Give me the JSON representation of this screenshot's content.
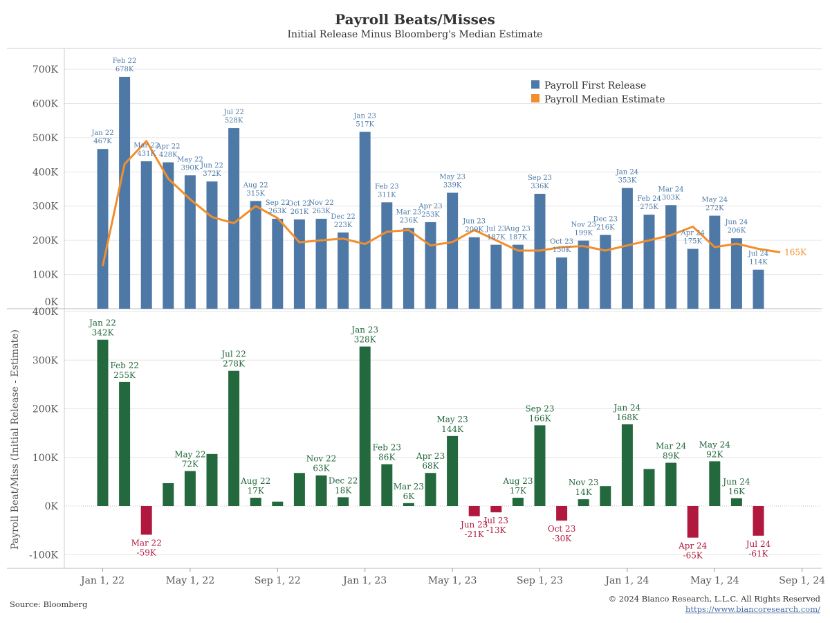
{
  "header": {
    "title": "Payroll Beats/Misses",
    "subtitle": "Initial Release Minus Bloomberg's Median Estimate"
  },
  "footer": {
    "source": "Source: Bloomberg",
    "copyright": "© 2024 Bianco Research, L.L.C. All Rights Reserved",
    "url": "https://www.biancoresearch.com/"
  },
  "colors": {
    "release_bar": "#4e79a7",
    "median_line": "#f28e2b",
    "beat_bar": "#24693d",
    "miss_bar": "#b0193d",
    "grid": "#e6e6e6",
    "axis_text": "#555555"
  },
  "chart_data": [
    {
      "type": "bar",
      "series": [
        {
          "name": "Payroll First Release",
          "x": [
            "2022-01",
            "2022-02",
            "2022-03",
            "2022-04",
            "2022-05",
            "2022-06",
            "2022-07",
            "2022-08",
            "2022-09",
            "2022-10",
            "2022-11",
            "2022-12",
            "2023-01",
            "2023-02",
            "2023-03",
            "2023-04",
            "2023-05",
            "2023-06",
            "2023-07",
            "2023-08",
            "2023-09",
            "2023-10",
            "2023-11",
            "2023-12",
            "2024-01",
            "2024-02",
            "2024-03",
            "2024-04",
            "2024-05",
            "2024-06",
            "2024-07"
          ],
          "values": [
            467,
            678,
            431,
            428,
            390,
            372,
            528,
            315,
            263,
            261,
            263,
            223,
            517,
            311,
            236,
            253,
            339,
            209,
            187,
            187,
            336,
            150,
            199,
            216,
            353,
            275,
            303,
            175,
            272,
            206,
            114
          ],
          "labels": [
            "Jan 22",
            "Feb 22",
            "Mar 22",
            "Apr 22",
            "May 22",
            "Jun 22",
            "Jul 22",
            "Aug 22",
            "Sep 22",
            "Oct 22",
            "Nov 22",
            "Dec 22",
            "Jan 23",
            "Feb 23",
            "Mar 23",
            "Apr 23",
            "May 23",
            "Jun 23",
            "Jul 23",
            "Aug 23",
            "Sep 23",
            "Oct 23",
            "Nov 23",
            "Dec 23",
            "Jan 24",
            "Feb 24",
            "Mar 24",
            "Apr 24",
            "May 24",
            "Jun 24",
            "Jul 24"
          ],
          "value_labels": [
            "467K",
            "678K",
            "431K",
            "428K",
            "390K",
            "372K",
            "528K",
            "315K",
            "263K",
            "261K",
            "263K",
            "223K",
            "517K",
            "311K",
            "236K",
            "253K",
            "339K",
            "209K",
            "187K",
            "187K",
            "336K",
            "150K",
            "199K",
            "216K",
            "353K",
            "275K",
            "303K",
            "175K",
            "272K",
            "206K",
            "114K"
          ]
        },
        {
          "name": "Payroll Median Estimate",
          "type": "line",
          "x": [
            "2022-01",
            "2022-02",
            "2022-03",
            "2022-04",
            "2022-05",
            "2022-06",
            "2022-07",
            "2022-08",
            "2022-09",
            "2022-10",
            "2022-11",
            "2022-12",
            "2023-01",
            "2023-02",
            "2023-03",
            "2023-04",
            "2023-05",
            "2023-06",
            "2023-07",
            "2023-08",
            "2023-09",
            "2023-10",
            "2023-11",
            "2023-12",
            "2024-01",
            "2024-02",
            "2024-03",
            "2024-04",
            "2024-05",
            "2024-06",
            "2024-07",
            "2024-08"
          ],
          "values": [
            125,
            423,
            490,
            380,
            320,
            268,
            250,
            300,
            265,
            194,
            200,
            205,
            189,
            225,
            230,
            185,
            195,
            230,
            200,
            170,
            170,
            180,
            183,
            170,
            185,
            200,
            215,
            240,
            180,
            190,
            175,
            165
          ],
          "end_label": "165K"
        }
      ],
      "y_ticks": [
        "0K",
        "100K",
        "200K",
        "300K",
        "400K",
        "500K",
        "600K",
        "700K"
      ],
      "ylim": [
        0,
        760
      ],
      "legend": "top-right",
      "grid": true
    },
    {
      "type": "bar",
      "ylabel": "Payroll Beat/Miss (Initial Release - Estimate)",
      "x": [
        "2022-01",
        "2022-02",
        "2022-03",
        "2022-04",
        "2022-05",
        "2022-06",
        "2022-07",
        "2022-08",
        "2022-09",
        "2022-10",
        "2022-11",
        "2022-12",
        "2023-01",
        "2023-02",
        "2023-03",
        "2023-04",
        "2023-05",
        "2023-06",
        "2023-07",
        "2023-08",
        "2023-09",
        "2023-10",
        "2023-11",
        "2023-12",
        "2024-01",
        "2024-02",
        "2024-03",
        "2024-04",
        "2024-05",
        "2024-06",
        "2024-07"
      ],
      "values": [
        342,
        255,
        -59,
        47,
        72,
        107,
        278,
        17,
        9,
        68,
        63,
        18,
        328,
        86,
        6,
        68,
        144,
        -21,
        -13,
        17,
        166,
        -30,
        14,
        41,
        168,
        76,
        89,
        -65,
        92,
        16,
        -61
      ],
      "labels": [
        {
          "i": 0,
          "month": "Jan 22",
          "value": "342K"
        },
        {
          "i": 1,
          "month": "Feb 22",
          "value": "255K"
        },
        {
          "i": 2,
          "month": "Mar 22",
          "value": "-59K"
        },
        {
          "i": 4,
          "month": "May 22",
          "value": "72K"
        },
        {
          "i": 6,
          "month": "Jul 22",
          "value": "278K"
        },
        {
          "i": 7,
          "month": "Aug 22",
          "value": "17K"
        },
        {
          "i": 10,
          "month": "Nov 22",
          "value": "63K"
        },
        {
          "i": 11,
          "month": "Dec 22",
          "value": "18K"
        },
        {
          "i": 12,
          "month": "Jan 23",
          "value": "328K"
        },
        {
          "i": 13,
          "month": "Feb 23",
          "value": "86K"
        },
        {
          "i": 14,
          "month": "Mar 23",
          "value": "6K"
        },
        {
          "i": 15,
          "month": "Apr 23",
          "value": "68K"
        },
        {
          "i": 16,
          "month": "May 23",
          "value": "144K"
        },
        {
          "i": 17,
          "month": "Jun 23",
          "value": "-21K"
        },
        {
          "i": 18,
          "month": "Jul 23",
          "value": "-13K"
        },
        {
          "i": 19,
          "month": "Aug 23",
          "value": "17K"
        },
        {
          "i": 20,
          "month": "Sep 23",
          "value": "166K"
        },
        {
          "i": 21,
          "month": "Oct 23",
          "value": "-30K"
        },
        {
          "i": 22,
          "month": "Nov 23",
          "value": "14K"
        },
        {
          "i": 24,
          "month": "Jan 24",
          "value": "168K"
        },
        {
          "i": 26,
          "month": "Mar 24",
          "value": "89K"
        },
        {
          "i": 27,
          "month": "Apr 24",
          "value": "-65K"
        },
        {
          "i": 28,
          "month": "May 24",
          "value": "92K"
        },
        {
          "i": 29,
          "month": "Jun 24",
          "value": "16K"
        },
        {
          "i": 30,
          "month": "Jul 24",
          "value": "-61K"
        }
      ],
      "y_ticks": [
        "-100K",
        "0K",
        "100K",
        "200K",
        "300K",
        "400K"
      ],
      "ylim": [
        -128,
        400
      ],
      "grid": true
    }
  ],
  "x_axis": {
    "tick_labels": [
      "Jan 1, 22",
      "May 1, 22",
      "Sep 1, 22",
      "Jan 1, 23",
      "May 1, 23",
      "Sep 1, 23",
      "Jan 1, 24",
      "May 1, 24",
      "Sep 1, 24"
    ]
  }
}
